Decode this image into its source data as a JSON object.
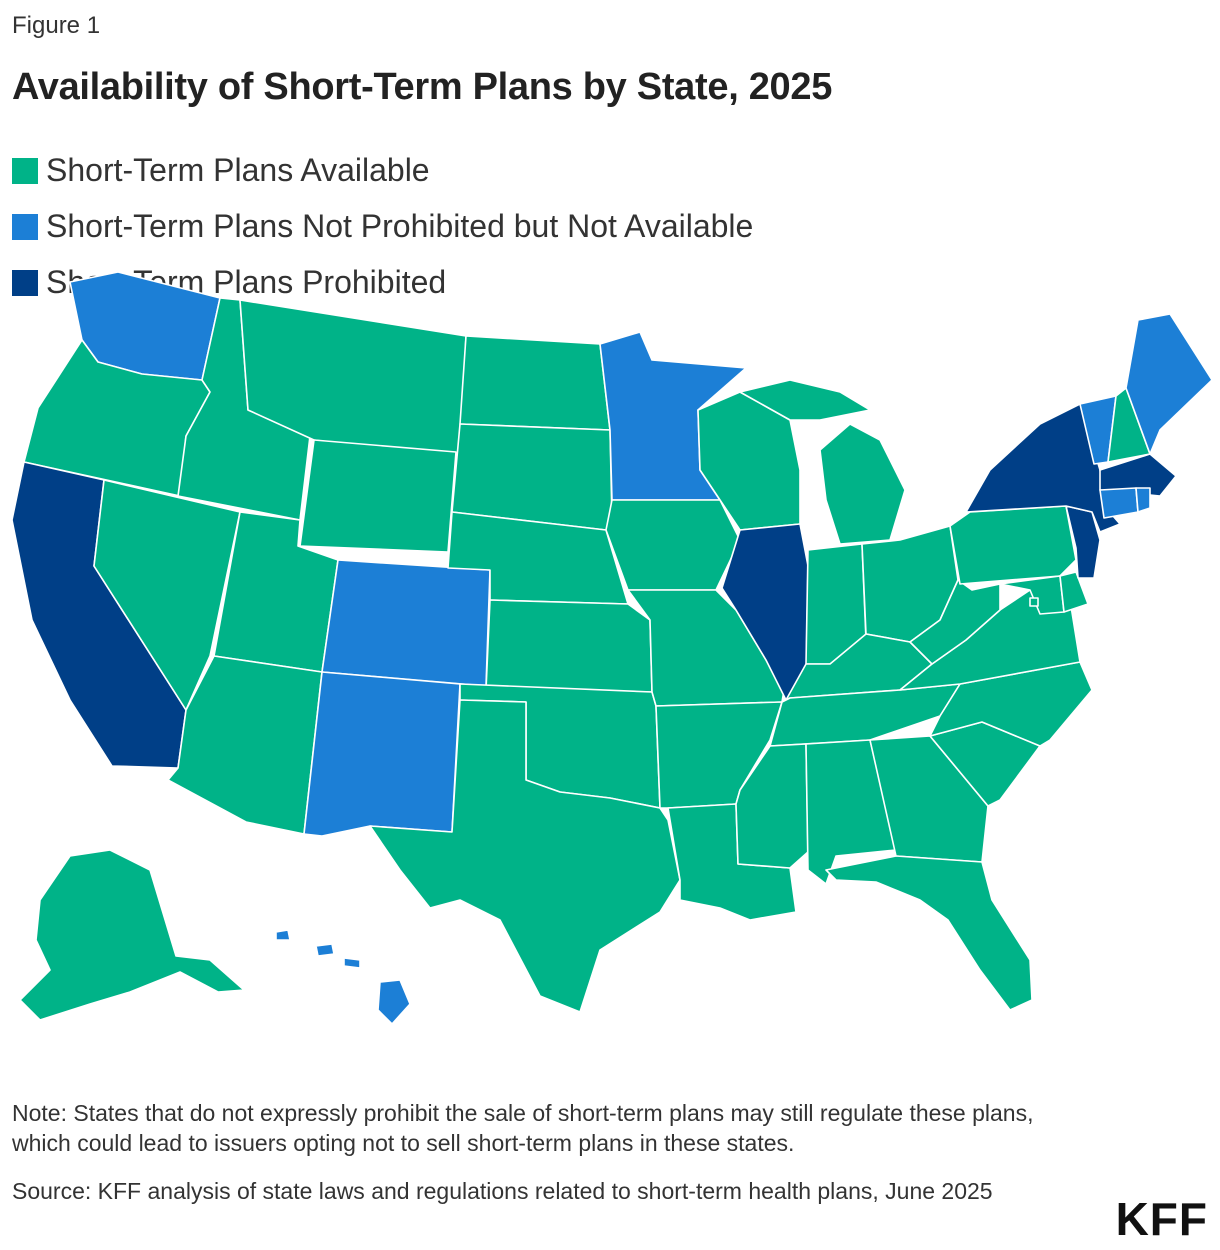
{
  "figure_label": "Figure 1",
  "title": "Availability of Short-Term Plans by State, 2025",
  "legend": [
    {
      "label": "Short-Term Plans Available",
      "color": "#00b388"
    },
    {
      "label": "Short-Term Plans Not Prohibited but Not Available",
      "color": "#1c7fd6"
    },
    {
      "label": "Short-Term Plans Prohibited",
      "color": "#003f87"
    }
  ],
  "categories": {
    "available": "#00b388",
    "not_available": "#1c7fd6",
    "prohibited": "#003f87"
  },
  "state_status": {
    "WA": "not_available",
    "OR": "available",
    "CA": "prohibited",
    "NV": "available",
    "ID": "available",
    "MT": "available",
    "WY": "available",
    "UT": "available",
    "AZ": "available",
    "CO": "not_available",
    "NM": "not_available",
    "ND": "available",
    "SD": "available",
    "NE": "available",
    "KS": "available",
    "OK": "available",
    "TX": "available",
    "MN": "not_available",
    "IA": "available",
    "MO": "available",
    "AR": "available",
    "LA": "available",
    "WI": "available",
    "IL": "prohibited",
    "MI": "available",
    "IN": "available",
    "OH": "available",
    "KY": "available",
    "TN": "available",
    "MS": "available",
    "AL": "available",
    "GA": "available",
    "FL": "available",
    "SC": "available",
    "NC": "available",
    "VA": "available",
    "WV": "available",
    "PA": "available",
    "NY": "prohibited",
    "VT": "not_available",
    "NH": "available",
    "ME": "not_available",
    "MA": "prohibited",
    "RI": "not_available",
    "CT": "not_available",
    "NJ": "prohibited",
    "DE": "available",
    "MD": "available",
    "DC": "available",
    "AK": "available",
    "HI": "not_available"
  },
  "note": "Note: States that do not expressly prohibit the sale of short-term plans may still regulate these plans, which could lead to issuers opting not to sell short-term plans in these states.",
  "source": "Source: KFF analysis of state laws and regulations related to short-term health plans, June 2025",
  "logo": "KFF"
}
